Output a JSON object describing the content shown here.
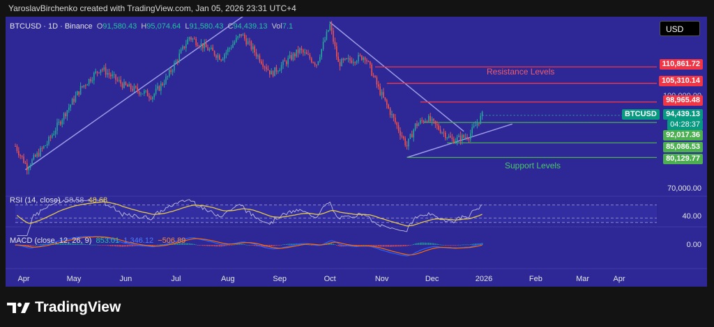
{
  "header": {
    "attribution": "YaroslavBirchenko created with TradingView.com, Jan 05, 2026 23:31 UTC+4"
  },
  "currency_button": "USD",
  "legend": {
    "symbol": "BTCUSD · 1D · Binance",
    "o_label": "O",
    "o": "91,580.43",
    "h_label": "H",
    "h": "95,074.64",
    "l_label": "L",
    "l": "91,580.43",
    "c_label": "C",
    "c": "94,439.13",
    "vol_label": "Vol",
    "vol": "7.1"
  },
  "rsi_legend": {
    "label": "RSI (14, close)",
    "v1": "58.58",
    "v2": "48.68"
  },
  "macd_legend": {
    "label": "MACD (close, 12, 26, 9)",
    "v1": "853.01",
    "v2": "1,346.12",
    "v3": "−506.89"
  },
  "annotations": {
    "resistance": "Resistance Levels",
    "support": "Support Levels"
  },
  "price_labels": {
    "r1": "110,861.72",
    "r2": "105,310.14",
    "r3": "98,965.48",
    "r_hidden": "100,000.00",
    "symbol": "BTCUSD",
    "last": "94,439.13",
    "countdown": "04:28:37",
    "s1": "92,017.36",
    "s2": "85,086.53",
    "s3": "80,129.77",
    "axis_70k": "70,000.00",
    "rsi_40": "40.00",
    "macd_0": "0.00"
  },
  "colors": {
    "panel": "#2d2896",
    "up": "#26a69a",
    "down": "#ef5350",
    "resistance": "#f23645",
    "support": "#4caf50",
    "trendline": "#9c9ce6",
    "rsi": "#e6c84a",
    "macd": "#2962ff",
    "signal": "#ff6d00"
  },
  "chart_data": {
    "type": "candlestick",
    "symbol": "BTCUSD",
    "interval": "1D",
    "exchange": "Binance",
    "x_ticks": [
      "Apr",
      "May",
      "Jun",
      "Jul",
      "Aug",
      "Sep",
      "Oct",
      "Nov",
      "Dec",
      "2026",
      "Feb",
      "Mar",
      "Apr"
    ],
    "y_ticks_visible": [
      70000,
      100000
    ],
    "ylim": [
      67000,
      126000
    ],
    "close_anchors": [
      {
        "date": "2025-04-01",
        "close": 84000
      },
      {
        "date": "2025-04-08",
        "close": 77000
      },
      {
        "date": "2025-04-20",
        "close": 85000
      },
      {
        "date": "2025-04-30",
        "close": 94500
      },
      {
        "date": "2025-05-10",
        "close": 103500
      },
      {
        "date": "2025-05-22",
        "close": 110500
      },
      {
        "date": "2025-06-05",
        "close": 104500
      },
      {
        "date": "2025-06-22",
        "close": 101000
      },
      {
        "date": "2025-07-01",
        "close": 107500
      },
      {
        "date": "2025-07-14",
        "close": 121000
      },
      {
        "date": "2025-08-02",
        "close": 114000
      },
      {
        "date": "2025-08-14",
        "close": 122000
      },
      {
        "date": "2025-09-01",
        "close": 108500
      },
      {
        "date": "2025-09-18",
        "close": 116500
      },
      {
        "date": "2025-09-28",
        "close": 112000
      },
      {
        "date": "2025-10-06",
        "close": 125000
      },
      {
        "date": "2025-10-11",
        "close": 112000
      },
      {
        "date": "2025-10-27",
        "close": 114500
      },
      {
        "date": "2025-11-04",
        "close": 103500
      },
      {
        "date": "2025-11-21",
        "close": 84000
      },
      {
        "date": "2025-11-26",
        "close": 91000
      },
      {
        "date": "2025-12-03",
        "close": 93500
      },
      {
        "date": "2025-12-18",
        "close": 86000
      },
      {
        "date": "2025-12-28",
        "close": 87500
      },
      {
        "date": "2026-01-05",
        "close": 94439
      }
    ],
    "resistance_levels": [
      110861.72,
      105310.14,
      98965.48
    ],
    "support_levels": [
      92017.36,
      85086.53,
      80129.77
    ],
    "trendlines": [
      {
        "name": "rising",
        "from": {
          "date": "2025-04-07",
          "price": 76000
        },
        "to": {
          "date": "2025-08-15",
          "price": 128000
        }
      },
      {
        "name": "falling",
        "from": {
          "date": "2025-10-06",
          "price": 126000
        },
        "to": {
          "date": "2025-12-25",
          "price": 89000
        }
      },
      {
        "name": "support",
        "from": {
          "date": "2025-11-21",
          "price": 80129.77
        },
        "to": {
          "date": "2026-01-23",
          "price": 91500
        }
      }
    ],
    "rsi": {
      "period": 14,
      "last": 58.58,
      "ma": 48.68,
      "lines": [
        70,
        40,
        30
      ]
    },
    "macd": {
      "fast": 12,
      "slow": 26,
      "signal": 9,
      "macd": 853.01,
      "signal_value": 1346.12,
      "histogram": -506.89
    }
  }
}
